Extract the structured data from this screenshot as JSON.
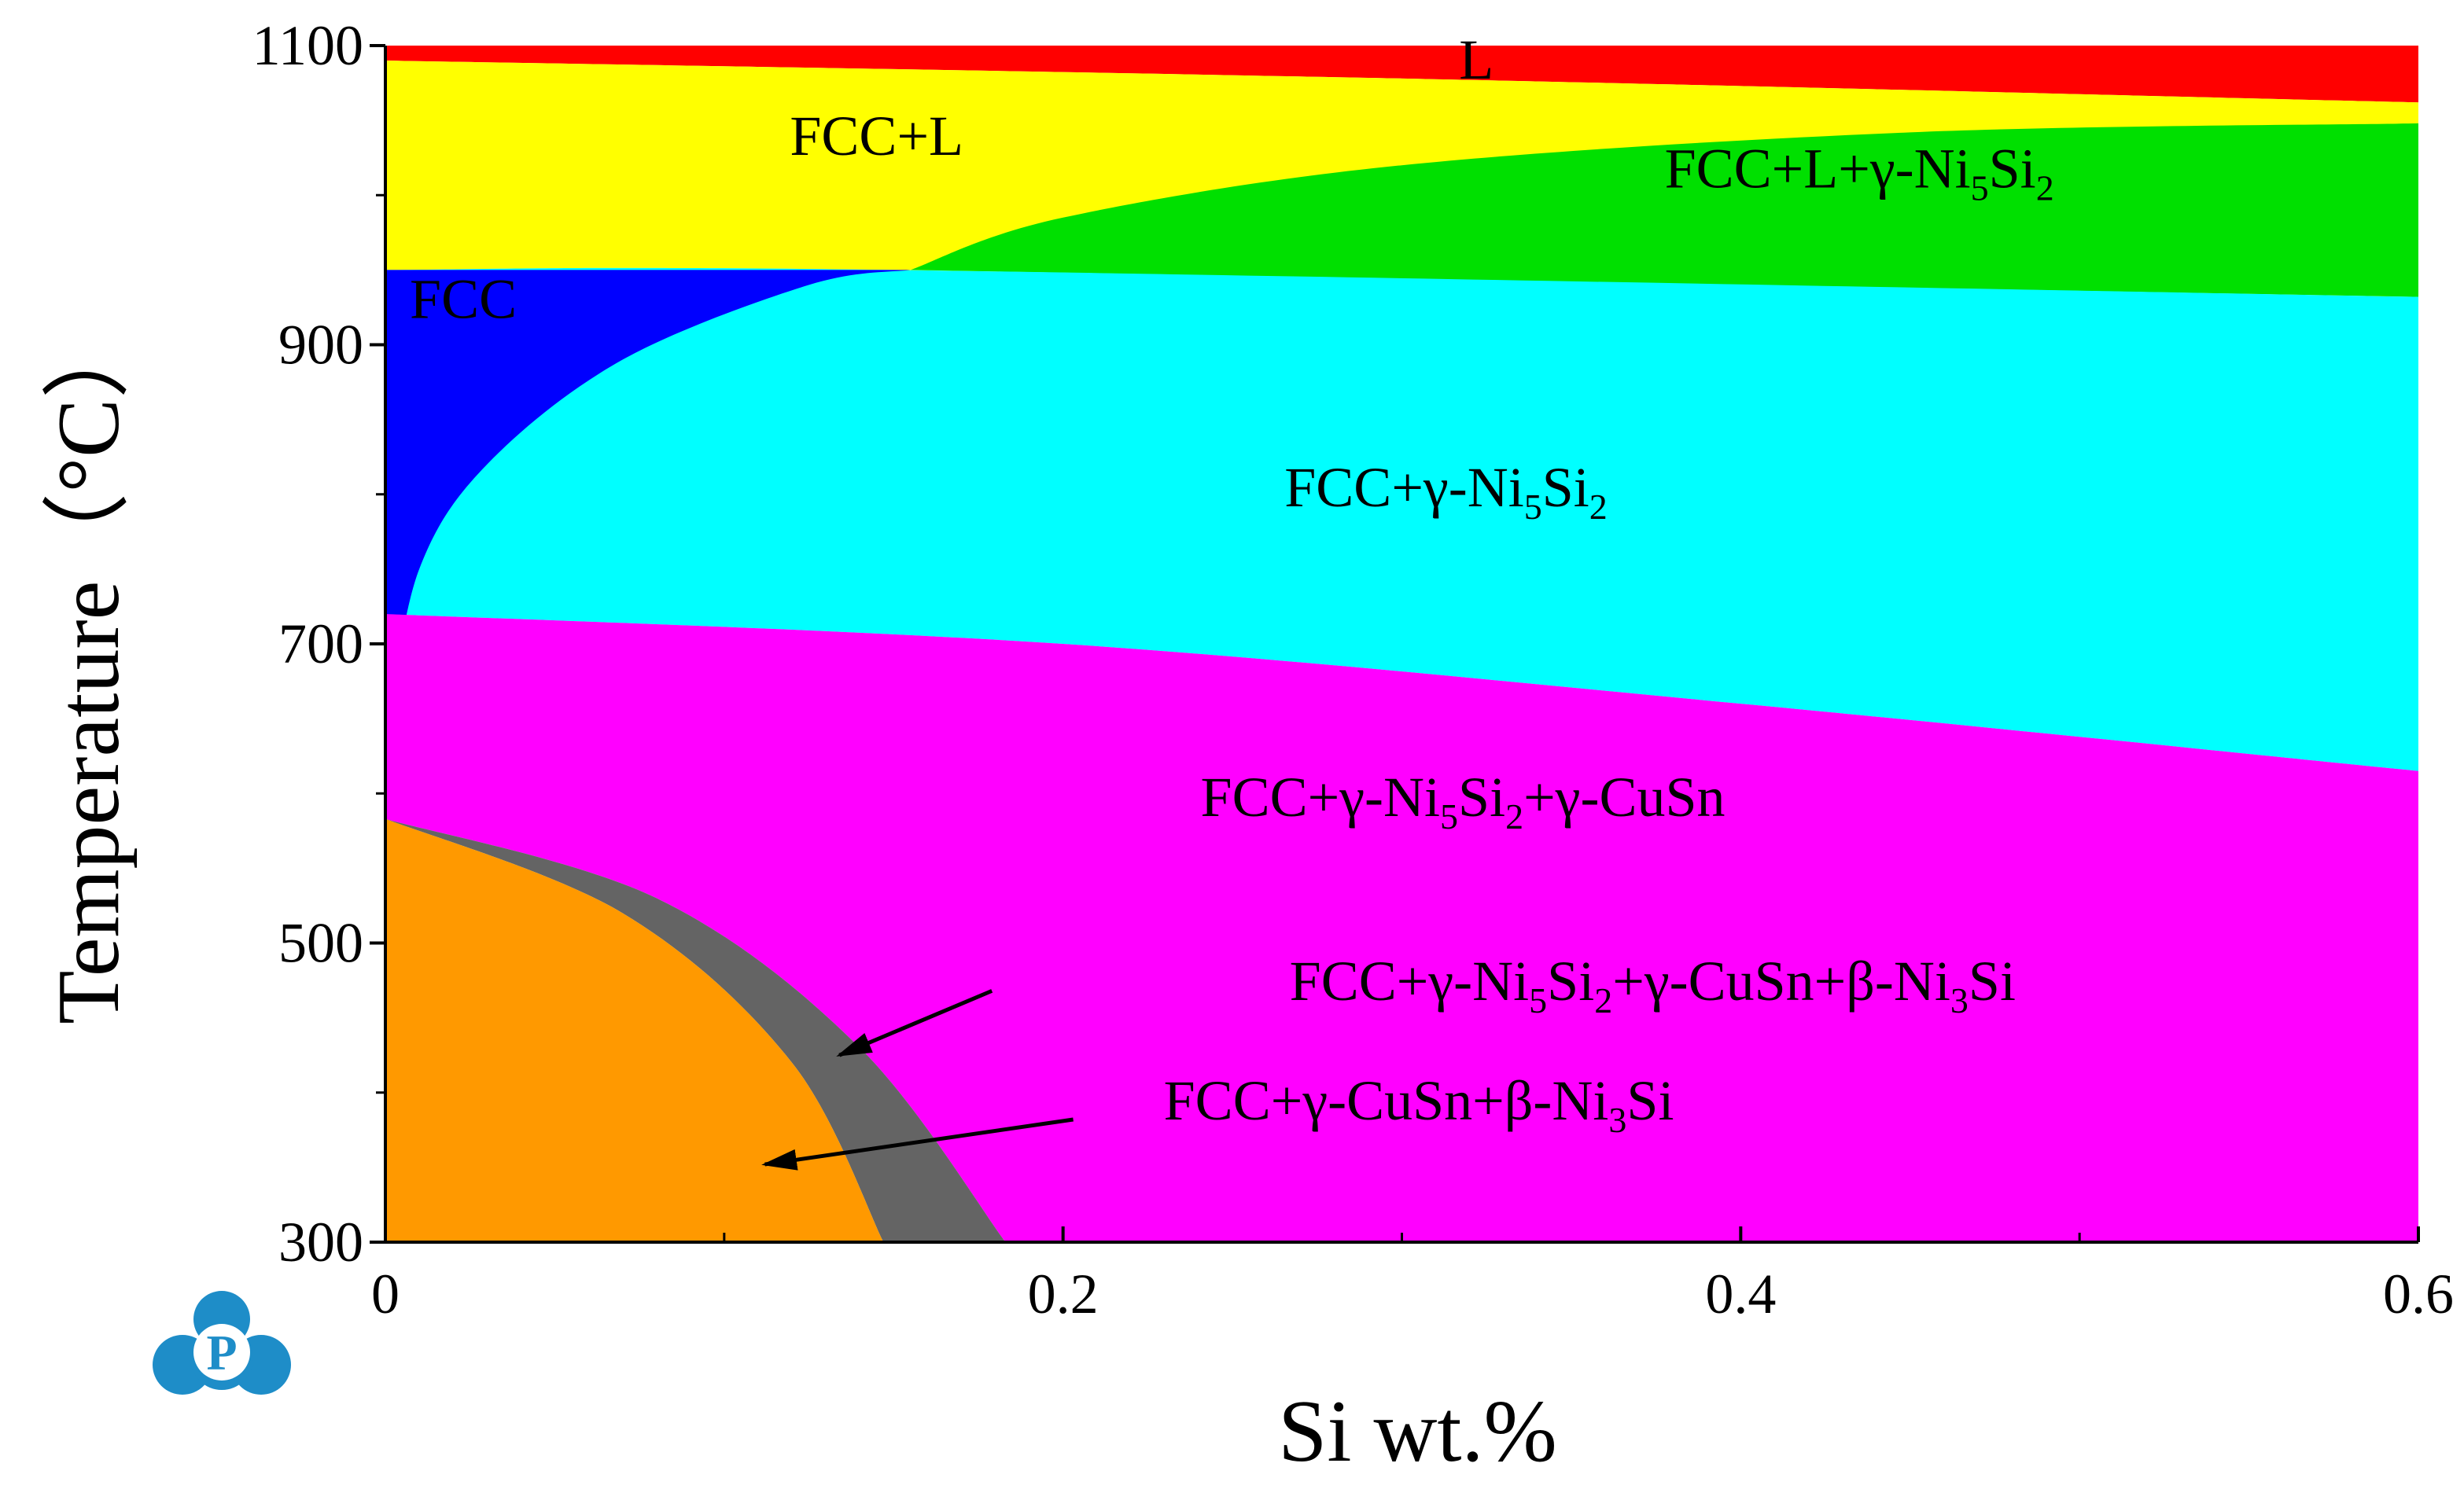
{
  "chart_data": {
    "type": "area",
    "title": "",
    "xlabel": "Si wt.%",
    "ylabel": "Temperature（°C）",
    "xlim": [
      0,
      0.6
    ],
    "ylim": [
      300,
      1100
    ],
    "xticks": [
      "0",
      "0.2",
      "0.4",
      "0.6"
    ],
    "yticks": [
      "300",
      "500",
      "700",
      "900",
      "1100"
    ],
    "grid": false,
    "legend": "none",
    "regions": [
      {
        "id": "L",
        "label": [
          "L"
        ],
        "color": "#ff0000"
      },
      {
        "id": "fcc-l",
        "label": [
          "FCC+L"
        ],
        "color": "#ffff00"
      },
      {
        "id": "fcc-l-ni5si2",
        "label": [
          "FCC+L+γ-Ni",
          "5",
          "Si",
          "2"
        ],
        "color": "#00e000"
      },
      {
        "id": "fcc",
        "label": [
          "FCC"
        ],
        "color": "#0000ff"
      },
      {
        "id": "fcc-ni5si2",
        "label": [
          "FCC+γ-Ni",
          "5",
          "Si",
          "2"
        ],
        "color": "#00ffff"
      },
      {
        "id": "fcc-ni5si2-cusn",
        "label": [
          "FCC+γ-Ni",
          "5",
          "Si",
          "2",
          "+γ-CuSn"
        ],
        "color": "#ff00ff"
      },
      {
        "id": "fcc-ni5si2-cusn-ni3si",
        "label": [
          "FCC+γ-Ni",
          "5",
          "Si",
          "2",
          "+γ-CuSn+β-Ni",
          "3",
          "Si"
        ],
        "color": "#646464"
      },
      {
        "id": "fcc-cusn-ni3si",
        "label": [
          "FCC+γ-CuSn+β-Ni",
          "3",
          "Si"
        ],
        "color": "#ff9900"
      }
    ],
    "boundaries": {
      "liquidus_top": [
        [
          0,
          1090
        ],
        [
          0.3,
          1078
        ],
        [
          0.6,
          1062
        ]
      ],
      "liquidus_bottom": [
        [
          0,
          1080
        ],
        [
          0.3,
          1070
        ],
        [
          0.6,
          1055
        ]
      ],
      "solidus": [
        [
          0,
          950
        ],
        [
          0.15,
          950
        ],
        [
          0.6,
          932
        ]
      ],
      "fcc_l_ni5si2_top": [
        [
          0.155,
          950
        ],
        [
          0.2,
          985
        ],
        [
          0.3,
          1020
        ],
        [
          0.45,
          1042
        ],
        [
          0.6,
          1048
        ]
      ],
      "fcc_solvus": [
        [
          0.001,
          650
        ],
        [
          0.01,
          750
        ],
        [
          0.03,
          820
        ],
        [
          0.07,
          890
        ],
        [
          0.125,
          940
        ],
        [
          0.155,
          950
        ]
      ],
      "ni5si2_cusn": [
        [
          0,
          720
        ],
        [
          0.2,
          700
        ],
        [
          0.4,
          660
        ],
        [
          0.6,
          615
        ]
      ],
      "ni3si_outer": [
        [
          0,
          583
        ],
        [
          0.08,
          530
        ],
        [
          0.14,
          430
        ],
        [
          0.183,
          300
        ]
      ],
      "ni3si_inner": [
        [
          0,
          583
        ],
        [
          0.07,
          520
        ],
        [
          0.12,
          420
        ],
        [
          0.147,
          300
        ]
      ]
    }
  },
  "logo": {
    "name": "publisher-logo",
    "letter": "P",
    "color": "#1e8dc8"
  }
}
